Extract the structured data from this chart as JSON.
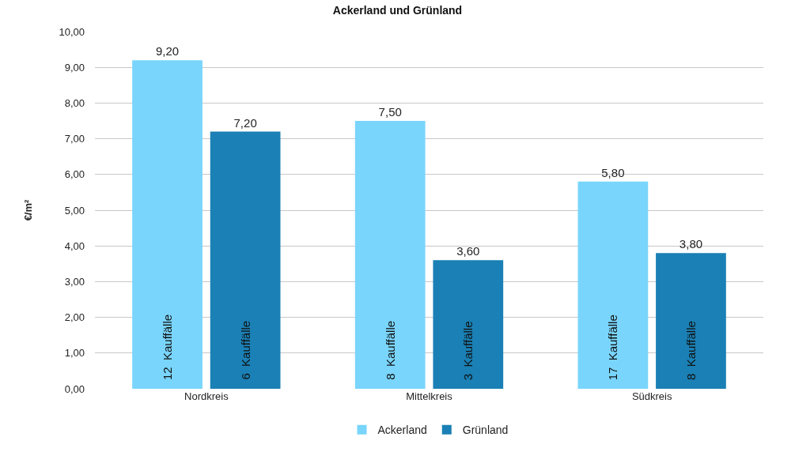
{
  "chart_data": {
    "type": "bar",
    "title": "Ackerland und Grünland",
    "ylabel": "€/m²",
    "categories": [
      "Nordkreis",
      "Mittelkreis",
      "Südkreis"
    ],
    "series": [
      {
        "name": "Ackerland",
        "color": "#79d5fb",
        "values": [
          9.2,
          7.5,
          5.8
        ],
        "value_labels": [
          "9,20",
          "7,50",
          "5,80"
        ]
      },
      {
        "name": "Grünland",
        "color": "#1a80b5",
        "values": [
          7.2,
          3.6,
          3.8
        ],
        "value_labels": [
          "7,20",
          "3,60",
          "3,80"
        ]
      }
    ],
    "ylim": [
      0,
      10
    ],
    "yticks": [
      {
        "value": 0,
        "label": "0,00"
      },
      {
        "value": 1,
        "label": "1,00"
      },
      {
        "value": 2,
        "label": "2,00"
      },
      {
        "value": 3,
        "label": "3,00"
      },
      {
        "value": 4,
        "label": "4,00"
      },
      {
        "value": 5,
        "label": "5,00"
      },
      {
        "value": 6,
        "label": "6,00"
      },
      {
        "value": 7,
        "label": "7,00"
      },
      {
        "value": 8,
        "label": "8,00"
      },
      {
        "value": 9,
        "label": "9,00"
      },
      {
        "value": 10,
        "label": "10,00"
      }
    ],
    "grid": "y",
    "legend": "bottom",
    "annotations": [
      "12  Kauffälle",
      "6  Kauffälle",
      "8  Kauffälle",
      "3  Kauffälle",
      "17  Kauffälle",
      "8  Kauffälle"
    ]
  }
}
